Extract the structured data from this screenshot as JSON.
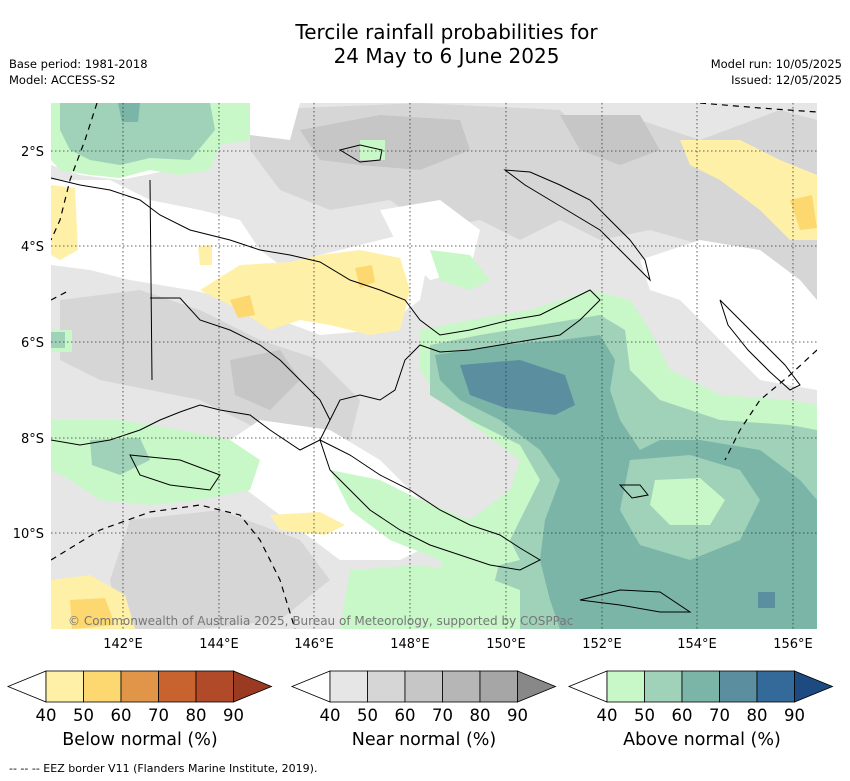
{
  "title": {
    "line1": "Tercile rainfall probabilities for",
    "line2": "24 May to 6 June 2025"
  },
  "meta_left": {
    "base_period": "Base period: 1981-2018",
    "model": "Model: ACCESS-S2"
  },
  "meta_right": {
    "model_run": "Model run: 10/05/2025",
    "issued": "Issued: 12/05/2025"
  },
  "map": {
    "lat_labels": [
      "2°S",
      "4°S",
      "6°S",
      "8°S",
      "10°S"
    ],
    "lon_labels": [
      "142°E",
      "144°E",
      "146°E",
      "148°E",
      "150°E",
      "152°E",
      "154°E",
      "156°E"
    ],
    "copyright": "© Commonwealth of Australia 2025, Bureau of Meteorology, supported by COSPPac",
    "colors": {
      "below": [
        "#fff0a8",
        "#fdd870",
        "#e09548",
        "#c8622e",
        "#b04a28",
        "#9a3a20"
      ],
      "near": [
        "#e6e6e6",
        "#d6d6d6",
        "#c6c6c6",
        "#b6b6b6",
        "#a6a6a6",
        "#888888"
      ],
      "above": [
        "#c8f7c8",
        "#9fd2b8",
        "#7bb5a8",
        "#5b8fa0",
        "#336a9a",
        "#1d4a80"
      ]
    }
  },
  "legends": {
    "below": {
      "title": "Below normal (%)",
      "ticks": [
        "40",
        "50",
        "60",
        "70",
        "80",
        "90"
      ]
    },
    "near": {
      "title": "Near normal (%)",
      "ticks": [
        "40",
        "50",
        "60",
        "70",
        "80",
        "90"
      ]
    },
    "above": {
      "title": "Above normal (%)",
      "ticks": [
        "40",
        "50",
        "60",
        "70",
        "80",
        "90"
      ]
    }
  },
  "footnote": "-- -- -- EEZ border V11 (Flanders Marine Institute, 2019)."
}
